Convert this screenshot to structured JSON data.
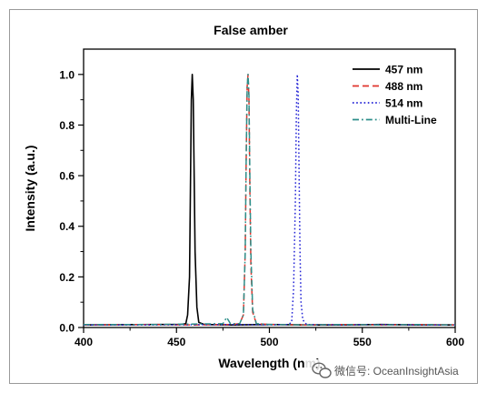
{
  "chart_data": {
    "type": "line",
    "title": "False amber",
    "xlabel": "Wavelength (nm)",
    "ylabel": "Intensity (a.u.)",
    "xlim": [
      400,
      600
    ],
    "ylim": [
      0.0,
      1.1
    ],
    "xticks": [
      400,
      450,
      500,
      550,
      600
    ],
    "xtick_labels": [
      "400",
      "450",
      "500",
      "550",
      "600"
    ],
    "yticks": [
      0.0,
      0.2,
      0.4,
      0.6,
      0.8,
      1.0
    ],
    "ytick_labels": [
      "0.0",
      "0.2",
      "0.4",
      "0.6",
      "0.8",
      "1.0"
    ],
    "grid": false,
    "legend_position": "top-right",
    "series": [
      {
        "name": "457 nm",
        "color": "#000000",
        "style": "solid",
        "x": [
          400,
          440,
          452,
          455,
          456,
          457,
          457.5,
          458,
          458.5,
          459,
          459.5,
          460,
          461,
          462,
          465,
          480,
          500,
          520,
          540,
          560,
          580,
          600
        ],
        "y": [
          0.01,
          0.012,
          0.012,
          0.015,
          0.05,
          0.2,
          0.55,
          0.9,
          1.0,
          0.9,
          0.6,
          0.3,
          0.08,
          0.02,
          0.012,
          0.01,
          0.012,
          0.01,
          0.01,
          0.012,
          0.01,
          0.01
        ]
      },
      {
        "name": "488 nm",
        "color": "#e0342c",
        "style": "dashed",
        "x": [
          400,
          430,
          460,
          480,
          484,
          486,
          487,
          487.5,
          488,
          488.5,
          489,
          489.5,
          490,
          491,
          493,
          500,
          520,
          540,
          560,
          580,
          600
        ],
        "y": [
          0.01,
          0.012,
          0.01,
          0.012,
          0.015,
          0.05,
          0.3,
          0.65,
          0.95,
          1.0,
          0.9,
          0.55,
          0.25,
          0.06,
          0.015,
          0.012,
          0.01,
          0.012,
          0.01,
          0.012,
          0.01
        ]
      },
      {
        "name": "514 nm",
        "color": "#2323d6",
        "style": "dotted",
        "x": [
          400,
          440,
          480,
          500,
          510,
          512,
          513,
          514,
          514.5,
          515,
          515.5,
          516,
          516.5,
          517,
          518,
          520,
          540,
          560,
          580,
          600
        ],
        "y": [
          0.01,
          0.01,
          0.012,
          0.01,
          0.012,
          0.02,
          0.15,
          0.5,
          0.85,
          1.0,
          0.92,
          0.6,
          0.3,
          0.1,
          0.03,
          0.012,
          0.01,
          0.012,
          0.01,
          0.01
        ]
      },
      {
        "name": "Multi-Line",
        "color": "#2e8f8a",
        "style": "dashdot",
        "x": [
          400,
          440,
          475,
          477,
          479,
          484,
          486,
          487,
          487.5,
          488,
          488.5,
          489,
          489.5,
          490,
          491,
          493,
          500,
          520,
          540,
          560,
          580,
          600
        ],
        "y": [
          0.012,
          0.012,
          0.015,
          0.04,
          0.015,
          0.015,
          0.05,
          0.3,
          0.65,
          0.95,
          1.0,
          0.92,
          0.6,
          0.3,
          0.07,
          0.015,
          0.012,
          0.01,
          0.012,
          0.01,
          0.012,
          0.01
        ]
      }
    ]
  },
  "watermark": {
    "text": "微信号: OceanInsightAsia",
    "icon": "wechat-icon"
  }
}
